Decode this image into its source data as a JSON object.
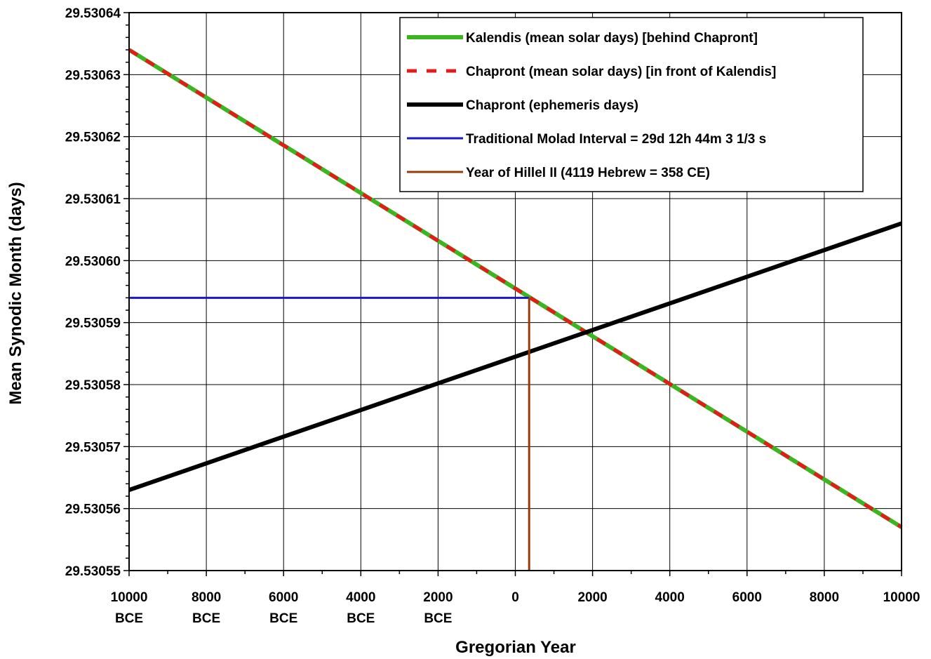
{
  "chart_data": {
    "type": "line",
    "title": "",
    "xlabel": "Gregorian Year",
    "ylabel": "Mean Synodic Month (days)",
    "xlim": [
      -10000,
      10000
    ],
    "ylim": [
      29.53055,
      29.53064
    ],
    "grid": true,
    "legend_position": "top-right",
    "x_ticks": [
      {
        "value": -10000,
        "label": [
          "10000",
          "BCE"
        ]
      },
      {
        "value": -8000,
        "label": [
          "8000",
          "BCE"
        ]
      },
      {
        "value": -6000,
        "label": [
          "6000",
          "BCE"
        ]
      },
      {
        "value": -4000,
        "label": [
          "4000",
          "BCE"
        ]
      },
      {
        "value": -2000,
        "label": [
          "2000",
          "BCE"
        ]
      },
      {
        "value": 0,
        "label": [
          "0"
        ]
      },
      {
        "value": 2000,
        "label": [
          "2000"
        ]
      },
      {
        "value": 4000,
        "label": [
          "4000"
        ]
      },
      {
        "value": 6000,
        "label": [
          "6000"
        ]
      },
      {
        "value": 8000,
        "label": [
          "8000"
        ]
      },
      {
        "value": 10000,
        "label": [
          "10000"
        ]
      }
    ],
    "y_ticks": [
      "29.53055",
      "29.53056",
      "29.53057",
      "29.53058",
      "29.53059",
      "29.53060",
      "29.53061",
      "29.53062",
      "29.53063",
      "29.53064"
    ],
    "series": [
      {
        "name": "Kalendis (mean solar days) [behind Chapront]",
        "color": "#3cb521",
        "style": "solid-thick",
        "x": [
          -10000,
          10000
        ],
        "y": [
          29.530634,
          29.530557
        ]
      },
      {
        "name": "Chapront (mean solar days) [in front of Kalendis]",
        "color": "#e31b1b",
        "style": "dashed",
        "x": [
          -10000,
          10000
        ],
        "y": [
          29.530634,
          29.530557
        ]
      },
      {
        "name": "Chapront (ephemeris days)",
        "color": "#000000",
        "style": "solid-thick",
        "x": [
          -10000,
          10000
        ],
        "y": [
          29.530563,
          29.530606
        ]
      },
      {
        "name": "Traditional Molad Interval = 29d 12h 44m 3 1/3 s",
        "color": "#1a1ac8",
        "style": "solid",
        "x": [
          -10000,
          358
        ],
        "y": [
          29.530594,
          29.530594
        ]
      },
      {
        "name": "Year of Hillel II (4119 Hebrew = 358 CE)",
        "color": "#9a3a0a",
        "style": "solid",
        "x": [
          358,
          358
        ],
        "y": [
          29.53055,
          29.530594
        ]
      }
    ]
  }
}
